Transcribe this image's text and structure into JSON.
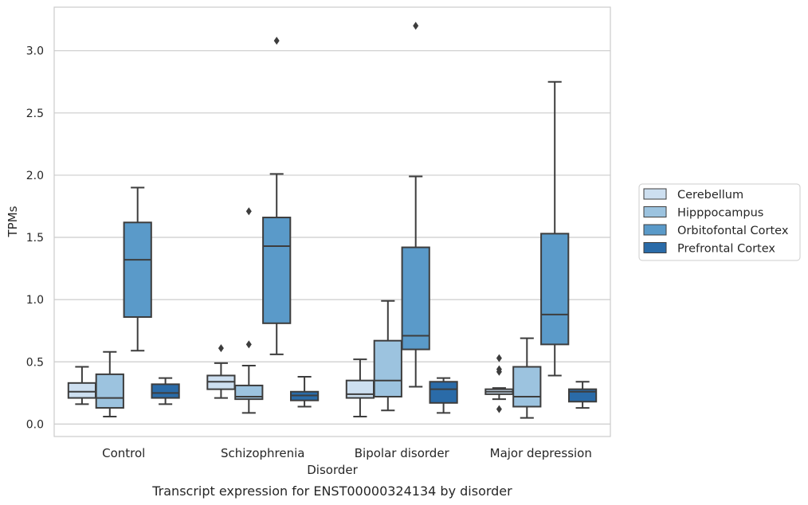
{
  "chart_data": {
    "type": "boxplot",
    "caption": "Transcript expression for ENST00000324134 by disorder",
    "xlabel": "Disorder",
    "ylabel": "TPMs",
    "ylim": [
      -0.1,
      3.35
    ],
    "yticks": [
      "0.0",
      "0.5",
      "1.0",
      "1.5",
      "2.0",
      "2.5",
      "3.0"
    ],
    "ytick_values": [
      0,
      0.5,
      1.0,
      1.5,
      2.0,
      2.5,
      3.0
    ],
    "categories": [
      "Control",
      "Schizophrenia",
      "Bipolar disorder",
      "Major depression"
    ],
    "grid": "horizontal",
    "legend_placement": "right",
    "series": [
      {
        "name": "Cerebellum",
        "color": "#cddff0",
        "boxes": [
          {
            "whislo": 0.16,
            "q1": 0.21,
            "med": 0.26,
            "q3": 0.33,
            "whishi": 0.46,
            "fliers": []
          },
          {
            "whislo": 0.21,
            "q1": 0.28,
            "med": 0.34,
            "q3": 0.39,
            "whishi": 0.49,
            "fliers": [
              0.61
            ]
          },
          {
            "whislo": 0.06,
            "q1": 0.21,
            "med": 0.24,
            "q3": 0.35,
            "whishi": 0.52,
            "fliers": []
          },
          {
            "whislo": 0.2,
            "q1": 0.24,
            "med": 0.26,
            "q3": 0.28,
            "whishi": 0.29,
            "fliers": [
              0.12,
              0.42,
              0.44,
              0.53
            ]
          }
        ]
      },
      {
        "name": "Hipppocampus",
        "color": "#9cc3df",
        "boxes": [
          {
            "whislo": 0.06,
            "q1": 0.13,
            "med": 0.21,
            "q3": 0.4,
            "whishi": 0.58,
            "fliers": []
          },
          {
            "whislo": 0.09,
            "q1": 0.2,
            "med": 0.22,
            "q3": 0.31,
            "whishi": 0.47,
            "fliers": [
              0.64,
              1.71
            ]
          },
          {
            "whislo": 0.11,
            "q1": 0.22,
            "med": 0.35,
            "q3": 0.67,
            "whishi": 0.99,
            "fliers": []
          },
          {
            "whislo": 0.05,
            "q1": 0.14,
            "med": 0.22,
            "q3": 0.46,
            "whishi": 0.69,
            "fliers": []
          }
        ]
      },
      {
        "name": "Orbitofontal Cortex",
        "color": "#5a9ac9",
        "boxes": [
          {
            "whislo": 0.59,
            "q1": 0.86,
            "med": 1.32,
            "q3": 1.62,
            "whishi": 1.9,
            "fliers": []
          },
          {
            "whislo": 0.56,
            "q1": 0.81,
            "med": 1.43,
            "q3": 1.66,
            "whishi": 2.01,
            "fliers": [
              3.08
            ]
          },
          {
            "whislo": 0.3,
            "q1": 0.6,
            "med": 0.71,
            "q3": 1.42,
            "whishi": 1.99,
            "fliers": [
              3.2
            ]
          },
          {
            "whislo": 0.39,
            "q1": 0.64,
            "med": 0.88,
            "q3": 1.53,
            "whishi": 2.75,
            "fliers": []
          }
        ]
      },
      {
        "name": "Prefrontal Cortex",
        "color": "#2a6ba8",
        "boxes": [
          {
            "whislo": 0.16,
            "q1": 0.21,
            "med": 0.25,
            "q3": 0.32,
            "whishi": 0.37,
            "fliers": []
          },
          {
            "whislo": 0.14,
            "q1": 0.19,
            "med": 0.23,
            "q3": 0.26,
            "whishi": 0.38,
            "fliers": []
          },
          {
            "whislo": 0.09,
            "q1": 0.17,
            "med": 0.28,
            "q3": 0.34,
            "whishi": 0.37,
            "fliers": []
          },
          {
            "whislo": 0.13,
            "q1": 0.18,
            "med": 0.26,
            "q3": 0.28,
            "whishi": 0.34,
            "fliers": []
          }
        ]
      }
    ]
  }
}
